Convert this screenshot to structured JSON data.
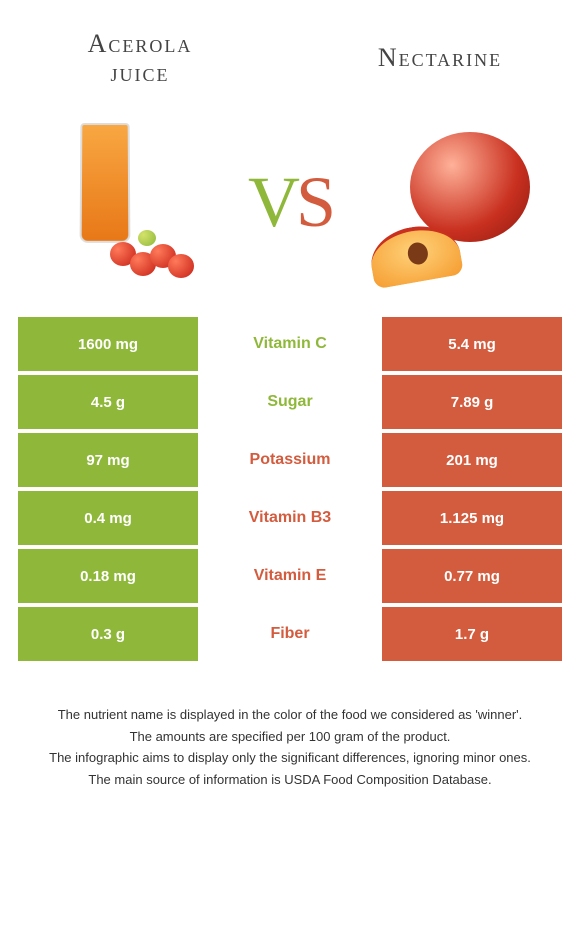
{
  "colors": {
    "left": "#8fb83a",
    "right": "#d35c3e",
    "text_dark": "#444444",
    "footer_text": "#333333",
    "background": "#ffffff"
  },
  "header": {
    "left_title_line1": "Acerola",
    "left_title_line2": "juice",
    "right_title": "Nectarine"
  },
  "vs": {
    "v": "V",
    "s": "S"
  },
  "rows": [
    {
      "label": "Vitamin C",
      "left": "1600 mg",
      "right": "5.4 mg",
      "winner": "left"
    },
    {
      "label": "Sugar",
      "left": "4.5 g",
      "right": "7.89 g",
      "winner": "left"
    },
    {
      "label": "Potassium",
      "left": "97 mg",
      "right": "201 mg",
      "winner": "right"
    },
    {
      "label": "Vitamin B3",
      "left": "0.4 mg",
      "right": "1.125 mg",
      "winner": "right"
    },
    {
      "label": "Vitamin E",
      "left": "0.18 mg",
      "right": "0.77 mg",
      "winner": "right"
    },
    {
      "label": "Fiber",
      "left": "0.3 g",
      "right": "1.7 g",
      "winner": "right"
    }
  ],
  "footer": {
    "line1": "The nutrient name is displayed in the color of the food we considered as 'winner'.",
    "line2": "The amounts are specified per 100 gram of the product.",
    "line3": "The infographic aims to display only the significant differences, ignoring minor ones.",
    "line4": "The main source of information is USDA Food Composition Database."
  }
}
